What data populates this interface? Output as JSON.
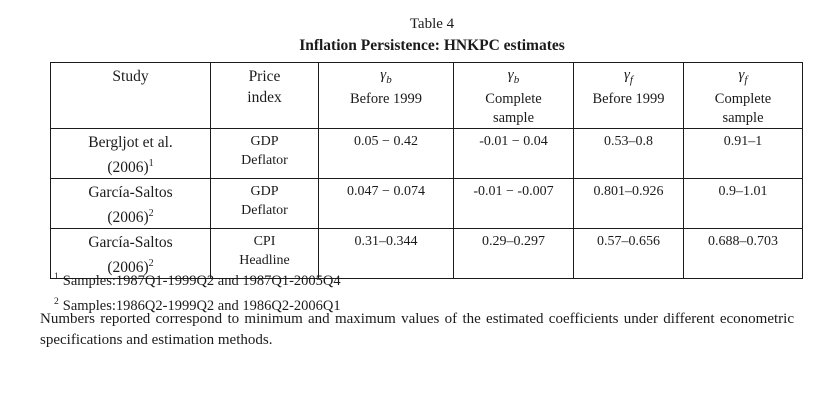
{
  "title": {
    "line1": "Table 4",
    "line2": "Inflation Persistence: HNKPC estimates"
  },
  "table": {
    "columns": [
      {
        "lines": [
          "Study"
        ]
      },
      {
        "lines": [
          "Price",
          "index"
        ]
      },
      {
        "symbol": "γ",
        "sub": "b",
        "lines": [
          "Before 1999"
        ]
      },
      {
        "symbol": "γ",
        "sub": "b",
        "lines": [
          "Complete",
          "sample"
        ]
      },
      {
        "symbol": "γ",
        "sub": "f",
        "lines": [
          "Before 1999"
        ]
      },
      {
        "symbol": "γ",
        "sub": "f",
        "lines": [
          "Complete",
          "sample"
        ]
      }
    ],
    "rows": [
      {
        "study_line1": "Bergljot et al.",
        "study_line2": "(2006)",
        "study_sup": "1",
        "price_line1": "GDP",
        "price_line2": "Deflator",
        "gb_before": "0.05 − 0.42",
        "gb_complete": "-0.01 − 0.04",
        "gf_before": "0.53–0.8",
        "gf_complete": "0.91–1"
      },
      {
        "study_line1": "García-Saltos",
        "study_line2": "(2006)",
        "study_sup": "2",
        "price_line1": "GDP",
        "price_line2": "Deflator",
        "gb_before": "0.047 − 0.074",
        "gb_complete": "-0.01 − -0.007",
        "gf_before": "0.801–0.926",
        "gf_complete": "0.9–1.01"
      },
      {
        "study_line1": "García-Saltos",
        "study_line2": "(2006)",
        "study_sup": "2",
        "price_line1": "CPI",
        "price_line2": "Headline",
        "gb_before": "0.31–0.344",
        "gb_complete": "0.29–0.297",
        "gf_before": "0.57–0.656",
        "gf_complete": "0.688–0.703"
      }
    ]
  },
  "footnotes": [
    {
      "sup": "1",
      "text": "Samples:1987Q1-1999Q2 and 1987Q1-2005Q4"
    },
    {
      "sup": "2",
      "text": "Samples:1986Q2-1999Q2 and 1986Q2-2006Q1"
    }
  ],
  "note": "Numbers reported correspond to minimum and maximum values of the estimated coefficients under different econometric specifications and estimation methods.",
  "colors": {
    "text": "#1b1b1b",
    "border": "#1b1b1b",
    "background": "#ffffff"
  }
}
